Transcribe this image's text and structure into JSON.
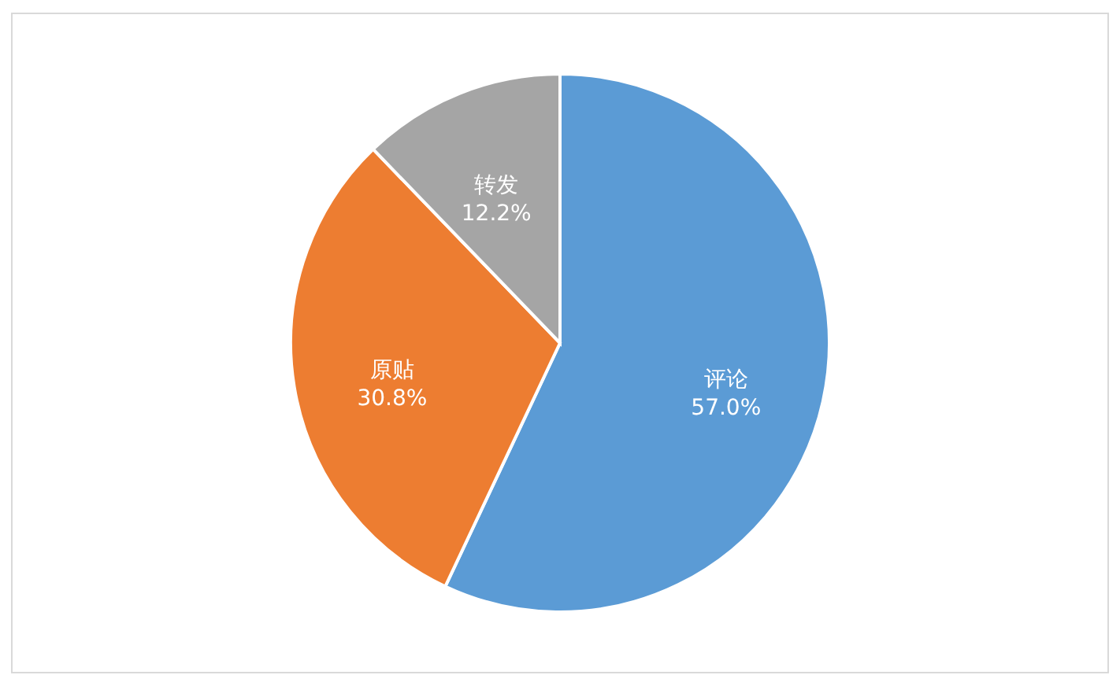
{
  "chart_data": {
    "type": "pie",
    "categories": [
      "评论",
      "原贴",
      "转发"
    ],
    "values": [
      57.0,
      30.8,
      12.2
    ],
    "colors": [
      "#5b9bd5",
      "#ed7d31",
      "#a5a5a5"
    ],
    "value_labels": [
      "57.0%",
      "30.8%",
      "12.2%"
    ]
  }
}
